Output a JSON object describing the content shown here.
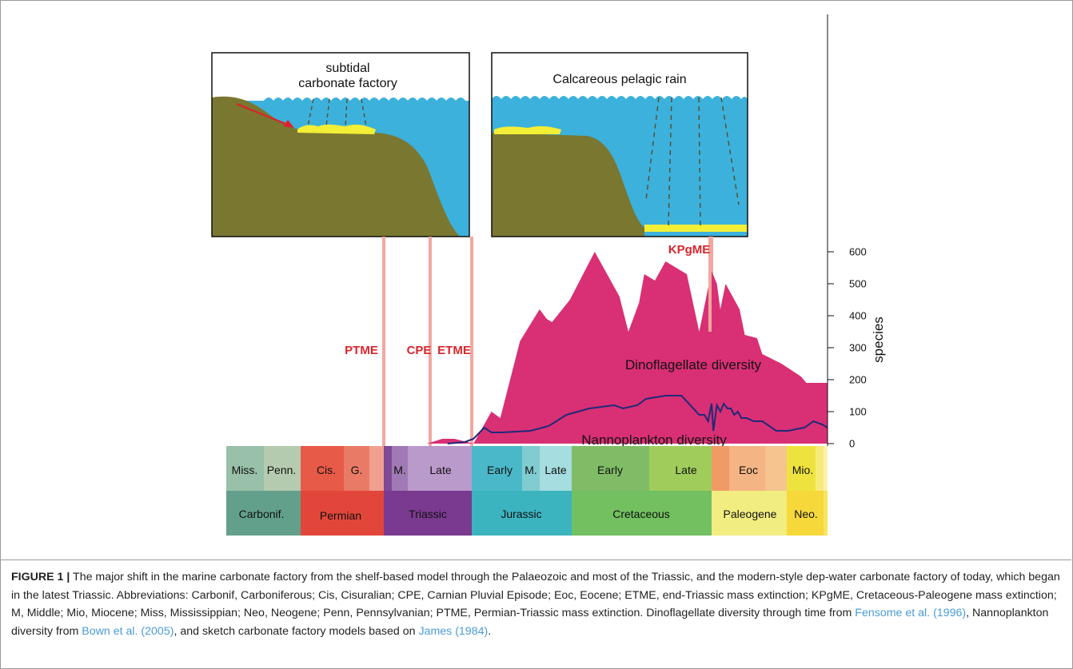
{
  "figure": {
    "panel_left_label": "subtidal\ncarbonate factory",
    "panel_right_label": "Calcareous pelagic rain",
    "events": [
      "PTME",
      "CPE",
      "ETME",
      "KPgME"
    ],
    "series_labels": {
      "dino": "Dinoflagellate diversity",
      "nanno": "Nannoplankton diversity"
    },
    "axis_label": "species",
    "colors": {
      "dino": "#d92f74",
      "nanno": "#1e2a78",
      "event_line": "#f2a8a0",
      "event_text": "#d7262c",
      "sea": "#3cb1dc",
      "land": "#7a7731",
      "carbonate": "#f3ee36",
      "arrow": "#e0202a"
    }
  },
  "chart_data": {
    "type": "area",
    "y_axis": {
      "label": "species",
      "ticks": [
        0,
        100,
        200,
        300,
        400,
        500,
        600
      ],
      "ylim": [
        0,
        650
      ]
    },
    "series": [
      {
        "name": "Dinoflagellate diversity",
        "x_ma": [
          240.0,
          227.0,
          218.0,
          211.0,
          200.0,
          190.0,
          185.0,
          174.0,
          163.0,
          159.0,
          156.0,
          146.0,
          132.0,
          118.0,
          113.0,
          107.0,
          104.0,
          98.0,
          92.0,
          80.0,
          73.0,
          66.0,
          63.0,
          61.0,
          58.0,
          50.0,
          47.0,
          40.0,
          37.0,
          26.0,
          15.0,
          12.0
        ],
        "y": [
          0,
          0,
          15,
          15,
          0,
          100,
          80,
          320,
          420,
          390,
          380,
          450,
          600,
          460,
          350,
          440,
          530,
          510,
          570,
          530,
          350,
          540,
          500,
          420,
          500,
          420,
          340,
          330,
          280,
          250,
          210,
          190
        ]
      },
      {
        "name": "Nannoplankton diversity",
        "x_ma": [
          215.0,
          205.0,
          200.0,
          194.0,
          190.0,
          184.0,
          168.0,
          158.0,
          155.0,
          148.0,
          135.0,
          121.0,
          116.0,
          108.0,
          103.0,
          92.0,
          83.0,
          73.0,
          70.0,
          68.0,
          66.0,
          65.0,
          63.0,
          61.0,
          59.0,
          57.0,
          55.0,
          53.0,
          51.0,
          49.0,
          46.0,
          42.0,
          37.0,
          29.0,
          22.0,
          18.0,
          13.0,
          8.0,
          3.0,
          0.0
        ],
        "y": [
          0,
          5,
          15,
          50,
          35,
          35,
          40,
          55,
          65,
          90,
          110,
          120,
          110,
          120,
          140,
          150,
          150,
          90,
          90,
          70,
          125,
          40,
          120,
          100,
          125,
          110,
          110,
          90,
          100,
          80,
          80,
          70,
          70,
          40,
          40,
          45,
          50,
          70,
          60,
          50
        ]
      }
    ]
  },
  "timescale": {
    "subdivisions": [
      "Miss.",
      "Penn.",
      "Cis.",
      "G.",
      "",
      "M.",
      "Late",
      "Early",
      "M.",
      "Late",
      "Early",
      "Late",
      "Eoc",
      "Mio."
    ],
    "periods": [
      "Carbonif.",
      "Permian",
      "Triassic",
      "Jurassic",
      "Cretaceous",
      "Paleogene",
      "Neo."
    ]
  },
  "caption": {
    "label": "FIGURE 1 |",
    "text_main": " The major shift in the marine carbonate factory from the shelf-based model through the Palaeozoic and most of the Triassic, and the modern-style dep-water carbonate factory of today, which began in the latest Triassic. Abbreviations: Carbonif, Carboniferous; Cis, Cisuralian; CPE, Carnian Pluvial Episode; Eoc, Eocene; ETME, end-Triassic mass extinction; KPgME, Cretaceous-Paleogene mass extinction; M, Middle; Mio, Miocene; Miss, Mississippian; Neo, Neogene; Penn, Pennsylvanian; PTME, Permian-Triassic mass extinction. Dinoflagellate diversity through time from ",
    "ref1": "Fensome et al. (1996)",
    "text_mid1": ", Nannoplankton diversity from ",
    "ref2": "Bown et al. (2005)",
    "text_mid2": ", and sketch carbonate factory models based on ",
    "ref3": "James (1984)",
    "text_end": "."
  }
}
